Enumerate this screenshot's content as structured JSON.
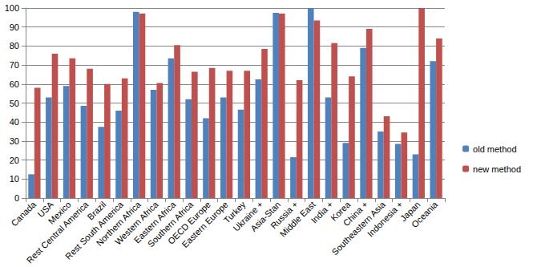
{
  "chart_data": {
    "type": "bar",
    "categories": [
      "Canada",
      "USA",
      "Mexico",
      "Rest Central America",
      "Brazil",
      "Rest South America",
      "Northern Africa",
      "Western Africa",
      "Eastern Africa",
      "Southern Africa",
      "OECD Europe",
      "Eastern Europe",
      "Turkey",
      "Ukraine +",
      "Asia-Stan",
      "Russia +",
      "Middle East",
      "India +",
      "Korea",
      "China +",
      "Southeastern Asia",
      "Indonesia +",
      "Japan",
      "Oceania"
    ],
    "series": [
      {
        "name": "old method",
        "color": "#4f81bd",
        "values": [
          12.5,
          53,
          59,
          48.5,
          37.5,
          46,
          98,
          57,
          73.5,
          52,
          42,
          53,
          46.5,
          62.5,
          97.5,
          21.5,
          100,
          53,
          29,
          79,
          35,
          28.5,
          23,
          72
        ]
      },
      {
        "name": "new method",
        "color": "#c0504d",
        "values": [
          58,
          76,
          73.5,
          68,
          60,
          63,
          97,
          60.5,
          80.5,
          66.5,
          68.5,
          67,
          67,
          78.5,
          97,
          62,
          93.5,
          81.5,
          64,
          89,
          43,
          34.5,
          100,
          84
        ]
      }
    ],
    "ylim": [
      0,
      100
    ],
    "yticks": [
      0,
      10,
      20,
      30,
      40,
      50,
      60,
      70,
      80,
      90,
      100
    ],
    "grid": true,
    "legend": "right"
  }
}
